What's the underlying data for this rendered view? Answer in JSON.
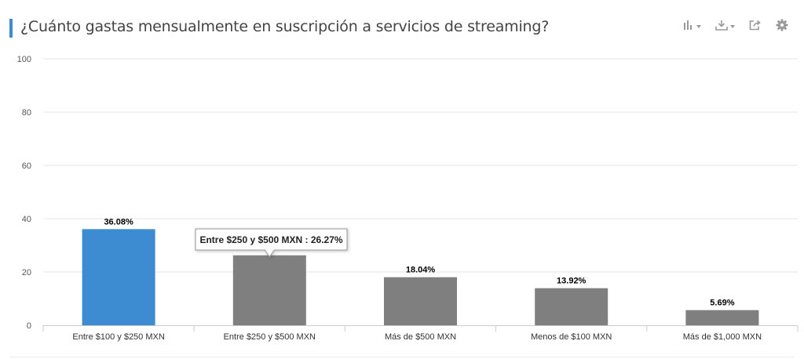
{
  "header": {
    "title": "¿Cuánto gastas mensualmente en suscripción a servicios de streaming?",
    "accent_color": "#3d8bd0"
  },
  "toolbar": {
    "icons": [
      "bar-chart-icon",
      "download-icon",
      "share-icon",
      "gear-icon"
    ],
    "icon_color": "#999999"
  },
  "chart_data": {
    "type": "bar",
    "categories": [
      "Entre $100 y $250 MXN",
      "Entre $250 y $500 MXN",
      "Más de $500 MXN",
      "Menos de $100 MXN",
      "Más de $1,000 MXN"
    ],
    "values": [
      36.08,
      26.27,
      18.04,
      13.92,
      5.69
    ],
    "data_labels": [
      "36.08%",
      "26.27%",
      "18.04%",
      "13.92%",
      "5.69%"
    ],
    "ylim": [
      0,
      100
    ],
    "yticks": [
      0,
      20,
      40,
      60,
      80,
      100
    ],
    "grid": true,
    "legend": "none",
    "highlight_index": 0,
    "highlight_color": "#3d8bd0",
    "bar_color": "#7f7f7f",
    "tooltip": {
      "index": 1,
      "text": "Entre $250 y $500 MXN : 26.27%"
    }
  }
}
